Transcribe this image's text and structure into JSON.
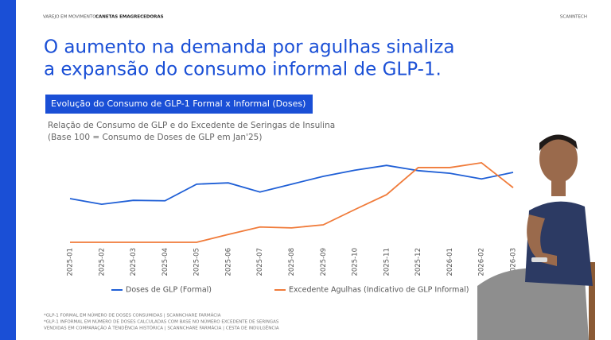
{
  "header": {
    "section": "VAREJO EM MOVIMENTO:",
    "topic": "CANETAS EMAGRECEDORAS",
    "brand": "SCANNTECH"
  },
  "title": [
    "O aumento na demanda por agulhas sinaliza",
    "a expansão do consumo informal de GLP-1."
  ],
  "chart_data": {
    "type": "line",
    "title": "Evolução do Consumo de GLP-1 Formal x Informal (Doses)",
    "subtitle": [
      "Relação de Consumo de GLP e do Excedente de Seringas de Insulina",
      "(Base 100 = Consumo de Doses de GLP em Jan'25)"
    ],
    "categories": [
      "2025-01",
      "2025-02",
      "2025-03",
      "2025-04",
      "2025-05",
      "2025-06",
      "2025-07",
      "2025-08",
      "2025-09",
      "2025-10",
      "2025-11",
      "2025-12",
      "2026-01",
      "2026-02",
      "2026-03"
    ],
    "series": [
      {
        "name": "Doses de GLP (Formal)",
        "color": "#1f5fd6",
        "values": [
          100,
          87,
          96,
          95,
          133,
          136,
          115,
          133,
          151,
          165,
          176,
          164,
          158,
          145,
          160
        ]
      },
      {
        "name": "Excedente Agulhas (Indicativo de GLP Informal)",
        "color": "#f07b3a",
        "values": [
          0,
          0,
          0,
          0,
          0,
          18,
          35,
          33,
          40,
          75,
          109,
          171,
          171,
          182,
          125
        ]
      }
    ],
    "ylim": [
      0,
      200
    ],
    "legend": "bottom"
  },
  "footnotes": [
    "*GLP-1 FORMAL EM NÚMERO DE DOSES CONSUMIDAS | SCANNCHARE FARMÁCIA",
    "*GLP-1 INFORMAL EM NÚMERO DE DOSES CALCULADAS COM BASE NO NÚMERO EXCEDENTE DE SERINGAS",
    "VENDIDAS EM COMPARAÇÃO À TENDÊNCIA HISTÓRICA | SCANNCHARE FARMÁCIA | CESTA DE INDULGÊNCIA"
  ]
}
